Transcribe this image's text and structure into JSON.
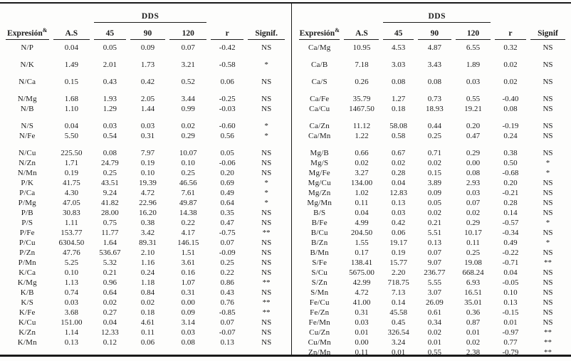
{
  "table": {
    "dds_label": "DDS",
    "halves": [
      {
        "columns": [
          "Expresión",
          "A.S",
          "45",
          "90",
          "120",
          "r",
          "Signif."
        ],
        "expr_sup": "&",
        "groups": [
          [
            [
              "N/P",
              "0.04",
              "0.05",
              "0.09",
              "0.07",
              "-0.42",
              "NS"
            ]
          ],
          [
            [
              "N/K",
              "1.49",
              "2.01",
              "1.73",
              "3.21",
              "-0.58",
              "*"
            ]
          ],
          [
            [
              "N/Ca",
              "0.15",
              "0.43",
              "0.42",
              "0.52",
              "0.06",
              "NS"
            ]
          ],
          [
            [
              "N/Mg",
              "1.68",
              "1.93",
              "2.05",
              "3.44",
              "-0.25",
              "NS"
            ],
            [
              "N/B",
              "1.10",
              "1.29",
              "1.44",
              "0.99",
              "-0.03",
              "NS"
            ]
          ],
          [
            [
              "N/S",
              "0.04",
              "0.03",
              "0.03",
              "0.02",
              "-0.60",
              "*"
            ],
            [
              "N/Fe",
              "5.50",
              "0.54",
              "0.31",
              "0.29",
              "0.56",
              "*"
            ]
          ],
          [
            [
              "N/Cu",
              "225.50",
              "0.08",
              "7.97",
              "10.07",
              "0.05",
              "NS"
            ],
            [
              "N/Zn",
              "1.71",
              "24.79",
              "0.19",
              "0.10",
              "-0.06",
              "NS"
            ],
            [
              "N/Mn",
              "0.19",
              "0.25",
              "0.10",
              "0.25",
              "0.20",
              "NS"
            ],
            [
              "P/K",
              "41.75",
              "43.51",
              "19.39",
              "46.56",
              "0.69",
              "*"
            ],
            [
              "P/Ca",
              "4.30",
              "9.24",
              "4.72",
              "7.61",
              "0.49",
              "*"
            ],
            [
              "P/Mg",
              "47.05",
              "41.82",
              "22.96",
              "49.87",
              "0.64",
              "*"
            ],
            [
              "P/B",
              "30.83",
              "28.00",
              "16.20",
              "14.38",
              "0.35",
              "NS"
            ],
            [
              "P/S",
              "1.11",
              "0.75",
              "0.38",
              "0.22",
              "0.47",
              "NS"
            ],
            [
              "P/Fe",
              "153.77",
              "11.77",
              "3.42",
              "4.17",
              "-0.75",
              "**"
            ],
            [
              "P/Cu",
              "6304.50",
              "1.64",
              "89.31",
              "146.15",
              "0.07",
              "NS"
            ],
            [
              "P/Zn",
              "47.76",
              "536.67",
              "2.10",
              "1.51",
              "-0.09",
              "NS"
            ],
            [
              "P/Mn",
              "5.25",
              "5.32",
              "1.16",
              "3.61",
              "0.25",
              "NS"
            ],
            [
              "K/Ca",
              "0.10",
              "0.21",
              "0.24",
              "0.16",
              "0.22",
              "NS"
            ],
            [
              "K/Mg",
              "1.13",
              "0.96",
              "1.18",
              "1.07",
              "0.86",
              "**"
            ],
            [
              "K/B",
              "0.74",
              "0.64",
              "0.84",
              "0.31",
              "0.43",
              "NS"
            ],
            [
              "K/S",
              "0.03",
              "0.02",
              "0.02",
              "0.00",
              "0.76",
              "**"
            ],
            [
              "K/Fe",
              "3.68",
              "0.27",
              "0.18",
              "0.09",
              "-0.85",
              "**"
            ],
            [
              "K/Cu",
              "151.00",
              "0.04",
              "4.61",
              "3.14",
              "0.07",
              "NS"
            ],
            [
              "K/Zn",
              "1.14",
              "12.33",
              "0.11",
              "0.03",
              "-0.07",
              "NS"
            ],
            [
              "K/Mn",
              "0.13",
              "0.12",
              "0.06",
              "0.08",
              "0.13",
              "NS"
            ]
          ]
        ]
      },
      {
        "columns": [
          "Expresión",
          "A.S",
          "45",
          "90",
          "120",
          "r",
          "Signif"
        ],
        "expr_sup": "&",
        "groups": [
          [
            [
              "Ca/Mg",
              "10.95",
              "4.53",
              "4.87",
              "6.55",
              "0.32",
              "NS"
            ]
          ],
          [
            [
              "Ca/B",
              "7.18",
              "3.03",
              "3.43",
              "1.89",
              "0.02",
              "NS"
            ]
          ],
          [
            [
              "Ca/S",
              "0.26",
              "0.08",
              "0.08",
              "0.03",
              "0.02",
              "NS"
            ]
          ],
          [
            [
              "Ca/Fe",
              "35.79",
              "1.27",
              "0.73",
              "0.55",
              "-0.40",
              "NS"
            ],
            [
              "Ca/Cu",
              "1467.50",
              "0.18",
              "18.93",
              "19.21",
              "0.08",
              "NS"
            ]
          ],
          [
            [
              "Ca/Zn",
              "11.12",
              "58.08",
              "0.44",
              "0.20",
              "-0.19",
              "NS"
            ],
            [
              "Ca/Mn",
              "1.22",
              "0.58",
              "0.25",
              "0.47",
              "0.24",
              "NS"
            ]
          ],
          [
            [
              "Mg/B",
              "0.66",
              "0.67",
              "0.71",
              "0.29",
              "0.38",
              "NS"
            ],
            [
              "Mg/S",
              "0.02",
              "0.02",
              "0.02",
              "0.00",
              "0.50",
              "*"
            ],
            [
              "Mg/Fe",
              "3.27",
              "0.28",
              "0.15",
              "0.08",
              "-0.68",
              "*"
            ],
            [
              "Mg/Cu",
              "134.00",
              "0.04",
              "3.89",
              "2.93",
              "0.20",
              "NS"
            ],
            [
              "Mg/Zn",
              "1.02",
              "12.83",
              "0.09",
              "0.03",
              "-0.21",
              "NS"
            ],
            [
              "Mg/Mn",
              "0.11",
              "0.13",
              "0.05",
              "0.07",
              "0.28",
              "NS"
            ],
            [
              "B/S",
              "0.04",
              "0.03",
              "0.02",
              "0.02",
              "0.14",
              "NS"
            ],
            [
              "B/Fe",
              "4.99",
              "0.42",
              "0.21",
              "0.29",
              "-0.57",
              "*"
            ],
            [
              "B/Cu",
              "204.50",
              "0.06",
              "5.51",
              "10.17",
              "-0.34",
              "NS"
            ],
            [
              "B/Zn",
              "1.55",
              "19.17",
              "0.13",
              "0.11",
              "0.49",
              "*"
            ],
            [
              "B/Mn",
              "0.17",
              "0.19",
              "0.07",
              "0.25",
              "-0.22",
              "NS"
            ],
            [
              "S/Fe",
              "138.41",
              "15.77",
              "9.07",
              "19.08",
              "-0.71",
              "**"
            ],
            [
              "S/Cu",
              "5675.00",
              "2.20",
              "236.77",
              "668.24",
              "0.04",
              "NS"
            ],
            [
              "S/Zn",
              "42.99",
              "718.75",
              "5.55",
              "6.93",
              "-0.05",
              "NS"
            ],
            [
              "S/Mn",
              "4.72",
              "7.13",
              "3.07",
              "16.51",
              "0.10",
              "NS"
            ],
            [
              "Fe/Cu",
              "41.00",
              "0.14",
              "26.09",
              "35.01",
              "0.13",
              "NS"
            ],
            [
              "Fe/Zn",
              "0.31",
              "45.58",
              "0.61",
              "0.36",
              "-0.15",
              "NS"
            ],
            [
              "Fe/Mn",
              "0.03",
              "0.45",
              "0.34",
              "0.87",
              "0.01",
              "NS"
            ],
            [
              "Cu/Zn",
              "0.01",
              "326.54",
              "0.02",
              "0.01",
              "-0.97",
              "**"
            ],
            [
              "Cu/Mn",
              "0.00",
              "3.24",
              "0.01",
              "0.02",
              "0.77",
              "**"
            ],
            [
              "Zn/Mn",
              "0.11",
              "0.01",
              "0.55",
              "2.38",
              "-0.79",
              "**"
            ]
          ]
        ]
      }
    ]
  }
}
